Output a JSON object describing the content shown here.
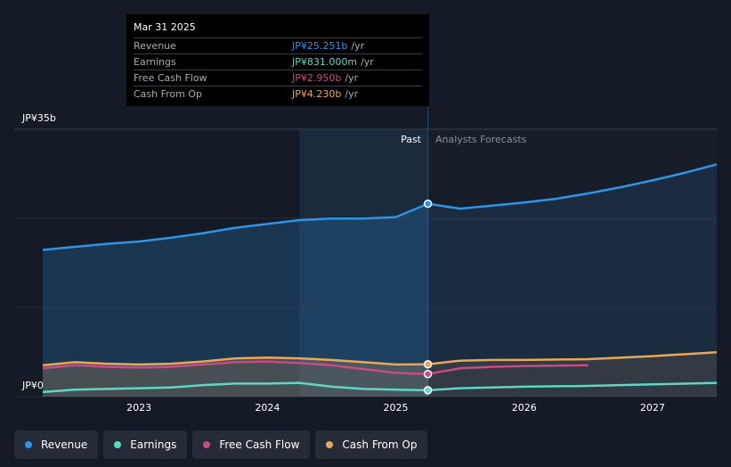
{
  "chart_data": {
    "type": "area",
    "title": "",
    "y_top_label": "JP¥35b",
    "y_bottom_label": "JP¥0",
    "ylim": [
      0,
      35
    ],
    "xlim": [
      2022.25,
      2027.5
    ],
    "x_ticks": [
      {
        "value": 2023,
        "label": "2023"
      },
      {
        "value": 2024,
        "label": "2024"
      },
      {
        "value": 2025,
        "label": "2025"
      },
      {
        "value": 2026,
        "label": "2026"
      },
      {
        "value": 2027,
        "label": "2027"
      }
    ],
    "past_label": "Past",
    "forecast_label": "Analysts Forecasts",
    "divider_x": 2025.25,
    "highlight_start_x": 2024.25,
    "forecast_end_x": 2027.5,
    "series": [
      {
        "name": "Revenue",
        "color": "#2f94e6",
        "fill": true,
        "past": [
          [
            2022.25,
            19.2
          ],
          [
            2022.5,
            19.6
          ],
          [
            2022.75,
            20.0
          ],
          [
            2023.0,
            20.3
          ],
          [
            2023.25,
            20.8
          ],
          [
            2023.5,
            21.4
          ],
          [
            2023.75,
            22.1
          ],
          [
            2024.0,
            22.6
          ],
          [
            2024.25,
            23.1
          ],
          [
            2024.5,
            23.3
          ],
          [
            2024.75,
            23.3
          ],
          [
            2025.0,
            23.5
          ],
          [
            2025.25,
            25.25
          ]
        ],
        "forecast": [
          [
            2025.25,
            25.25
          ],
          [
            2025.5,
            24.6
          ],
          [
            2025.75,
            25.0
          ],
          [
            2026.0,
            25.4
          ],
          [
            2026.25,
            25.9
          ],
          [
            2026.5,
            26.6
          ],
          [
            2026.75,
            27.4
          ],
          [
            2027.0,
            28.3
          ],
          [
            2027.25,
            29.3
          ],
          [
            2027.5,
            30.4
          ]
        ],
        "marker_x": 2025.25
      },
      {
        "name": "Cash From Op",
        "color": "#e8a85a",
        "fill": true,
        "past": [
          [
            2022.25,
            4.1
          ],
          [
            2022.5,
            4.5
          ],
          [
            2022.75,
            4.3
          ],
          [
            2023.0,
            4.2
          ],
          [
            2023.25,
            4.3
          ],
          [
            2023.5,
            4.6
          ],
          [
            2023.75,
            5.0
          ],
          [
            2024.0,
            5.1
          ],
          [
            2024.25,
            5.0
          ],
          [
            2024.5,
            4.8
          ],
          [
            2024.75,
            4.5
          ],
          [
            2025.0,
            4.2
          ],
          [
            2025.25,
            4.23
          ]
        ],
        "forecast": [
          [
            2025.25,
            4.23
          ],
          [
            2025.5,
            4.7
          ],
          [
            2025.75,
            4.8
          ],
          [
            2026.0,
            4.8
          ],
          [
            2026.5,
            4.9
          ],
          [
            2027.0,
            5.3
          ],
          [
            2027.5,
            5.8
          ]
        ],
        "marker_x": 2025.25
      },
      {
        "name": "Free Cash Flow",
        "color": "#c84a86",
        "fill": false,
        "past": [
          [
            2022.25,
            3.7
          ],
          [
            2022.5,
            4.1
          ],
          [
            2022.75,
            3.9
          ],
          [
            2023.0,
            3.8
          ],
          [
            2023.25,
            3.9
          ],
          [
            2023.5,
            4.2
          ],
          [
            2023.75,
            4.5
          ],
          [
            2024.0,
            4.6
          ],
          [
            2024.25,
            4.4
          ],
          [
            2024.5,
            4.1
          ],
          [
            2024.75,
            3.6
          ],
          [
            2025.0,
            3.1
          ],
          [
            2025.25,
            2.95
          ]
        ],
        "forecast": [
          [
            2025.25,
            2.95
          ],
          [
            2025.5,
            3.7
          ],
          [
            2025.75,
            3.9
          ],
          [
            2026.0,
            4.0
          ],
          [
            2026.5,
            4.1
          ]
        ],
        "marker_x": 2025.25
      },
      {
        "name": "Earnings",
        "color": "#5fd6c6",
        "fill": false,
        "past": [
          [
            2022.25,
            0.6
          ],
          [
            2022.5,
            0.9
          ],
          [
            2022.75,
            1.0
          ],
          [
            2023.0,
            1.1
          ],
          [
            2023.25,
            1.2
          ],
          [
            2023.5,
            1.5
          ],
          [
            2023.75,
            1.7
          ],
          [
            2024.0,
            1.7
          ],
          [
            2024.25,
            1.8
          ],
          [
            2024.5,
            1.3
          ],
          [
            2024.75,
            1.0
          ],
          [
            2025.0,
            0.9
          ],
          [
            2025.25,
            0.83
          ]
        ],
        "forecast": [
          [
            2025.25,
            0.83
          ],
          [
            2025.5,
            1.1
          ],
          [
            2025.75,
            1.2
          ],
          [
            2026.0,
            1.3
          ],
          [
            2026.5,
            1.4
          ],
          [
            2027.0,
            1.6
          ],
          [
            2027.5,
            1.8
          ]
        ],
        "marker_x": 2025.25
      }
    ]
  },
  "tooltip": {
    "date": "Mar 31 2025",
    "unit": "/yr",
    "rows": [
      {
        "label": "Revenue",
        "value": "JP¥25.251b",
        "color": "#2f94e6"
      },
      {
        "label": "Earnings",
        "value": "JP¥831.000m",
        "color": "#5fd6c6"
      },
      {
        "label": "Free Cash Flow",
        "value": "JP¥2.950b",
        "color": "#c84a86"
      },
      {
        "label": "Cash From Op",
        "value": "JP¥4.230b",
        "color": "#e8a85a"
      }
    ]
  },
  "legend": [
    {
      "label": "Revenue",
      "color": "#2f94e6"
    },
    {
      "label": "Earnings",
      "color": "#5fd6c6"
    },
    {
      "label": "Free Cash Flow",
      "color": "#c84a86"
    },
    {
      "label": "Cash From Op",
      "color": "#e8a85a"
    }
  ]
}
